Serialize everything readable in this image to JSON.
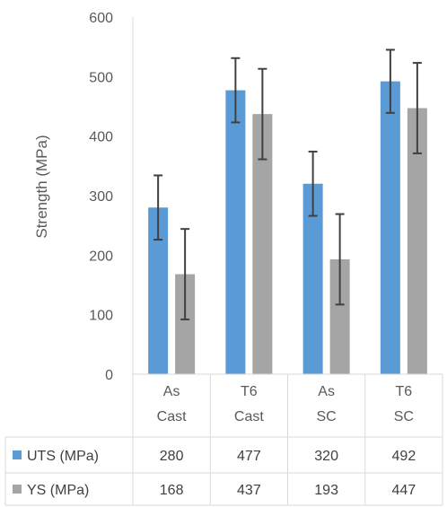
{
  "chart_data": {
    "type": "bar",
    "categories": [
      [
        "As",
        "Cast"
      ],
      [
        "T6",
        "Cast"
      ],
      [
        "As",
        "SC"
      ],
      [
        "T6",
        "SC"
      ]
    ],
    "series": [
      {
        "name": "UTS (MPa)",
        "values": [
          280,
          477,
          320,
          492
        ],
        "error": [
          54,
          54,
          54,
          53
        ],
        "color": "#5B9BD5"
      },
      {
        "name": "YS (MPa)",
        "values": [
          168,
          437,
          193,
          447
        ],
        "error": [
          76,
          76,
          76,
          76
        ],
        "color": "#A5A5A5"
      }
    ],
    "ylabel": "Strength (MPa)",
    "ylim": [
      0,
      600
    ],
    "yticks": [
      0,
      100,
      200,
      300,
      400,
      500,
      600
    ],
    "grid": false,
    "data_table": true,
    "error_bar_color": "#404040",
    "axis_color": "#D9D9D9"
  }
}
